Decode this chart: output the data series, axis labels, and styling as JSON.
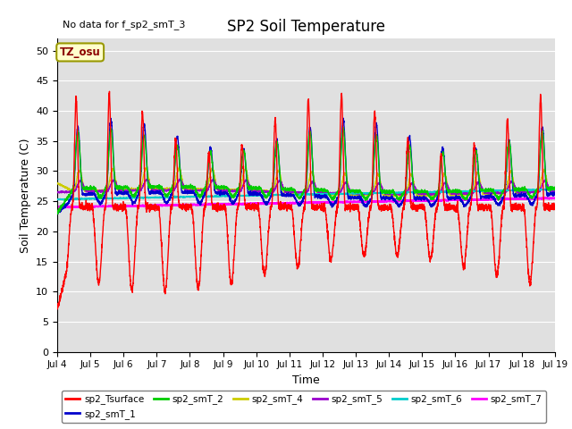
{
  "title": "SP2 Soil Temperature",
  "xlabel": "Time",
  "ylabel": "Soil Temperature (C)",
  "ylim": [
    0,
    52
  ],
  "xlim": [
    0,
    15
  ],
  "bg_color": "#e0e0e0",
  "annotation_no_data": "No data for f_sp2_smT_3",
  "tz_label": "TZ_osu",
  "xtick_labels": [
    "Jul 4",
    "Jul 5",
    "Jul 6",
    "Jul 7",
    "Jul 8",
    "Jul 9",
    "Jul 10",
    "Jul 11",
    "Jul 12",
    "Jul 13",
    "Jul 14",
    "Jul 15",
    "Jul 16",
    "Jul 17",
    "Jul 18",
    "Jul 19"
  ],
  "ytick_labels": [
    0,
    5,
    10,
    15,
    20,
    25,
    30,
    35,
    40,
    45,
    50
  ],
  "legend_entries": [
    {
      "label": "sp2_Tsurface",
      "color": "#ff0000"
    },
    {
      "label": "sp2_smT_1",
      "color": "#0000cc"
    },
    {
      "label": "sp2_smT_2",
      "color": "#00cc00"
    },
    {
      "label": "sp2_smT_4",
      "color": "#cccc00"
    },
    {
      "label": "sp2_smT_5",
      "color": "#9900cc"
    },
    {
      "label": "sp2_smT_6",
      "color": "#00cccc"
    },
    {
      "label": "sp2_smT_7",
      "color": "#ff00ff"
    }
  ]
}
